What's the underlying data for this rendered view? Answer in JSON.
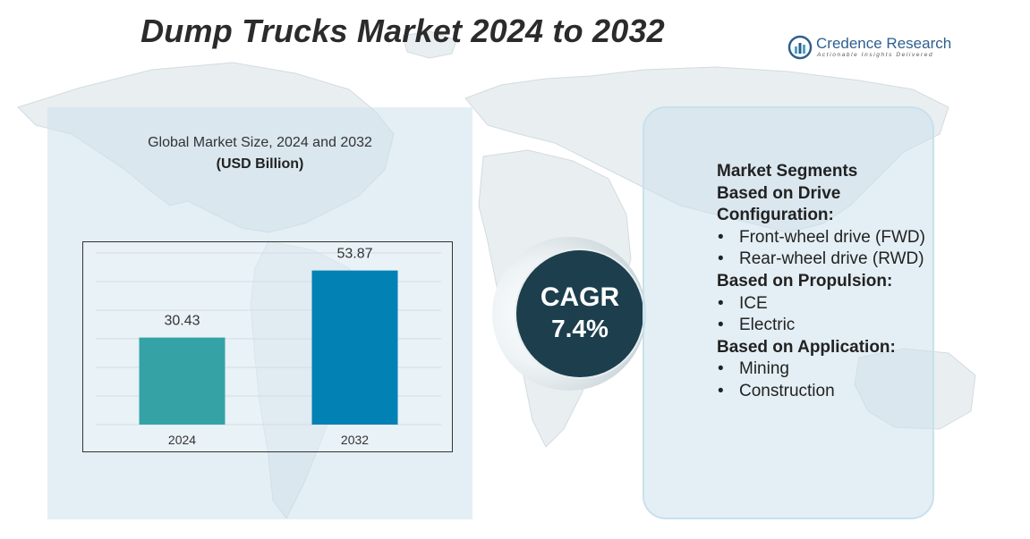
{
  "title": "Dump Trucks Market 2024 to 2032",
  "logo": {
    "name": "Credence Research",
    "tagline": "Actionable Insights Delivered"
  },
  "chart_caption": {
    "line1": "Global Market Size, 2024 and 2032",
    "unit": "(USD Billion)"
  },
  "chart_data": {
    "type": "bar",
    "title": "Global Market Size, 2024 and 2032",
    "ylabel": "USD Billion",
    "xlabel": "",
    "categories": [
      "2024",
      "2032"
    ],
    "values": [
      30.43,
      53.87
    ],
    "value_labels": [
      "30.43",
      "53.87"
    ],
    "colors": [
      "#35a3a5",
      "#0281b5"
    ],
    "ylim": [
      0,
      60
    ],
    "grid": true
  },
  "cagr": {
    "label": "CAGR",
    "value": "7.4%"
  },
  "segments": {
    "heading": "Market Segments",
    "groups": [
      {
        "heading": "Based on Drive Configuration:",
        "items": [
          "Front-wheel drive (FWD)",
          "Rear-wheel drive (RWD)"
        ]
      },
      {
        "heading": "Based on Propulsion:",
        "items": [
          "ICE",
          "Electric"
        ]
      },
      {
        "heading": "Based on Application:",
        "items": [
          "Mining",
          "Construction"
        ]
      }
    ]
  },
  "colors": {
    "panel": "#cee2ec",
    "cagr_circle": "#1c3e4d",
    "title": "#2b2b2b",
    "logo": "#2d5f8f"
  }
}
